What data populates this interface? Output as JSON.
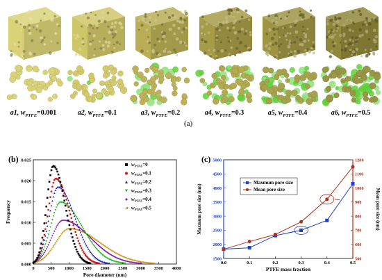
{
  "panel_a": {
    "label": "(a)",
    "samples": [
      {
        "id": "a1",
        "w_symbol": "w",
        "w_sub": "PTFE",
        "w_value": "=0.001",
        "fill": "#d9d277",
        "micro_bg": "#d9d277",
        "green_level": 0.0
      },
      {
        "id": "a2",
        "w_symbol": "w",
        "w_sub": "PTFE",
        "w_value": "=0.1",
        "fill": "#cfc668",
        "micro_bg": "#d2ca6c",
        "green_level": 0.05
      },
      {
        "id": "a3",
        "w_symbol": "w",
        "w_sub": "PTFE",
        "w_value": "=0.2",
        "fill": "#b9ae55",
        "micro_bg": "#bdb25a",
        "green_level": 0.25
      },
      {
        "id": "a4",
        "w_symbol": "w",
        "w_sub": "PTFE",
        "w_value": "=0.3",
        "fill": "#a69c48",
        "micro_bg": "#b3aa52",
        "green_level": 0.45
      },
      {
        "id": "a5",
        "w_symbol": "w",
        "w_sub": "PTFE",
        "w_value": "=0.4",
        "fill": "#9e9444",
        "micro_bg": "#a8a24e",
        "green_level": 0.65
      },
      {
        "id": "a6",
        "w_symbol": "w",
        "w_sub": "PTFE",
        "w_value": "=0.5",
        "fill": "#8f873b",
        "micro_bg": "#9a9646",
        "green_level": 0.85
      }
    ]
  },
  "panel_b": {
    "label": "(b)"
  },
  "panel_c": {
    "label": "(c)"
  },
  "chart_data": [
    {
      "type": "line",
      "title": "",
      "xlabel": "Pore diameter (nm)",
      "ylabel": "Frequency",
      "xlim": [
        0,
        4000
      ],
      "ylim": [
        0,
        0.025
      ],
      "xticks": [
        "0",
        "500",
        "1000",
        "1500",
        "2000",
        "2500",
        "3000",
        "3500",
        "4000"
      ],
      "yticks": [
        "0.000",
        "0.005",
        "0.010",
        "0.015",
        "0.020",
        "0.025"
      ],
      "legend_position": "top-right",
      "series": [
        {
          "name": "w_PTFE=0",
          "legend_sub": "PTFE",
          "legend_value": "=0",
          "color": "#000000",
          "marker": "square",
          "peak_x": 560,
          "peak_y": 0.0235,
          "left_sigma": 190,
          "right_sigma": 330
        },
        {
          "name": "w_PTFE=0.1",
          "legend_sub": "PTFE",
          "legend_value": "=0.1",
          "color": "#d11a1a",
          "marker": "circle",
          "peak_x": 630,
          "peak_y": 0.0205,
          "left_sigma": 220,
          "right_sigma": 390
        },
        {
          "name": "w_PTFE=0.2",
          "legend_sub": "PTFE",
          "legend_value": "=0.2",
          "color": "#2222cc",
          "marker": "triangle",
          "peak_x": 690,
          "peak_y": 0.0185,
          "left_sigma": 250,
          "right_sigma": 470
        },
        {
          "name": "w_PTFE=0.3",
          "legend_sub": "PTFE",
          "legend_value": "=0.3",
          "color": "#22bb22",
          "marker": "down",
          "peak_x": 760,
          "peak_y": 0.0148,
          "left_sigma": 280,
          "right_sigma": 600
        },
        {
          "name": "w_PTFE=0.4",
          "legend_sub": "PTFE",
          "legend_value": "=0.4",
          "color": "#8a22b5",
          "marker": "diamond",
          "peak_x": 830,
          "peak_y": 0.0105,
          "left_sigma": 320,
          "right_sigma": 760
        },
        {
          "name": "w_PTFE=0.5",
          "legend_sub": "PTFE",
          "legend_value": "=0.5",
          "color": "#c89a1a",
          "marker": "left",
          "peak_x": 1000,
          "peak_y": 0.0085,
          "left_sigma": 380,
          "right_sigma": 850
        }
      ]
    },
    {
      "type": "line",
      "title": "",
      "xlabel": "PTFE mass fraction",
      "ylabel": "Maxmum pore size (nm)",
      "ylabel_right": "Mean pore size (nm)",
      "x": [
        0.0,
        0.1,
        0.2,
        0.3,
        0.4,
        0.5
      ],
      "xlim": [
        0,
        0.5
      ],
      "xticks": [
        "0.0",
        "0.1",
        "0.2",
        "0.3",
        "0.4",
        "0.5"
      ],
      "ylim_left": [
        1500,
        5000
      ],
      "yticks_left": [
        "1500",
        "2000",
        "2500",
        "3000",
        "3500",
        "4000",
        "4500",
        "5000"
      ],
      "ylim_right": [
        500,
        1200
      ],
      "yticks_right": [
        "500",
        "600",
        "700",
        "800",
        "900",
        "1000",
        "1100",
        "1200"
      ],
      "legend_position": "top-left",
      "series": [
        {
          "name": "Maxmum pore size",
          "axis": "left",
          "color": "#1f3fd0",
          "marker": "square",
          "values": [
            1830,
            1880,
            2310,
            2500,
            2850,
            4150
          ]
        },
        {
          "name": "Mean pore size",
          "axis": "right",
          "color": "#b0301a",
          "marker": "circle",
          "values": [
            565,
            620,
            670,
            760,
            920,
            1150
          ]
        }
      ]
    }
  ]
}
